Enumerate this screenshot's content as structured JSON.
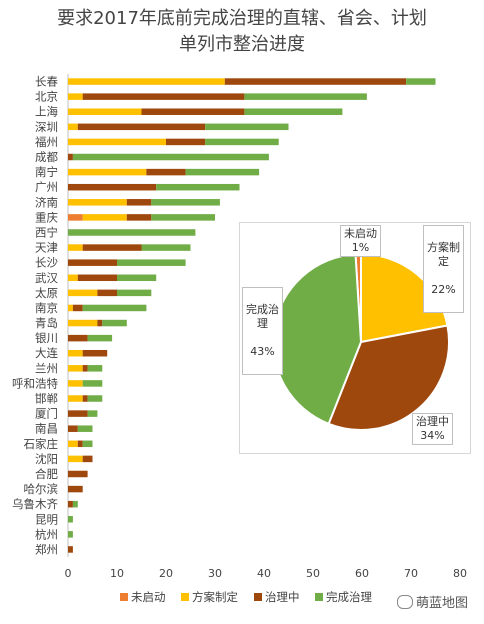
{
  "chart_data": [
    {
      "type": "bar",
      "orientation": "horizontal",
      "stacked": true,
      "title": "要求2017年底前完成治理的直辖、省会、计划单列市整治进度",
      "title_lines": [
        "要求2017年底前完成治理的直辖、省会、计划",
        "单列市整治进度"
      ],
      "categories": [
        "长春",
        "北京",
        "上海",
        "深圳",
        "福州",
        "成都",
        "南宁",
        "广州",
        "济南",
        "重庆",
        "西宁",
        "天津",
        "长沙",
        "武汉",
        "太原",
        "南京",
        "青岛",
        "银川",
        "大连",
        "兰州",
        "呼和浩特",
        "邯郸",
        "厦门",
        "南昌",
        "石家庄",
        "沈阳",
        "合肥",
        "哈尔滨",
        "乌鲁木齐",
        "昆明",
        "杭州",
        "郑州"
      ],
      "series": [
        {
          "name": "未启动",
          "color": "#ED7D31",
          "values": [
            0,
            0,
            0,
            0,
            0,
            0,
            0,
            0,
            0,
            3,
            0,
            0,
            0,
            0,
            0,
            0,
            0,
            0,
            0,
            0,
            0,
            0,
            0,
            0,
            0,
            0,
            0,
            0,
            0,
            0,
            0,
            0
          ]
        },
        {
          "name": "方案制定",
          "color": "#FFC000",
          "values": [
            32,
            3,
            15,
            2,
            20,
            0,
            16,
            0,
            12,
            9,
            0,
            3,
            0,
            2,
            6,
            1,
            6,
            0,
            3,
            3,
            3,
            3,
            0,
            0,
            2,
            3,
            0,
            0,
            0,
            0,
            0,
            0
          ]
        },
        {
          "name": "治理中",
          "color": "#9E480E",
          "values": [
            37,
            33,
            21,
            26,
            8,
            1,
            8,
            18,
            5,
            5,
            0,
            12,
            10,
            8,
            4,
            2,
            1,
            4,
            5,
            1,
            0,
            1,
            4,
            2,
            1,
            2,
            4,
            3,
            1,
            0,
            0,
            1
          ]
        },
        {
          "name": "完成治理",
          "color": "#70AD47",
          "values": [
            6,
            25,
            20,
            17,
            15,
            40,
            15,
            17,
            14,
            13,
            26,
            10,
            14,
            8,
            7,
            13,
            5,
            5,
            0,
            3,
            4,
            3,
            2,
            3,
            2,
            0,
            0,
            0,
            1,
            1,
            1,
            0
          ]
        }
      ],
      "xlim": [
        0,
        80
      ],
      "xticks": [
        0,
        10,
        20,
        30,
        40,
        50,
        60,
        70,
        80
      ],
      "grid": false,
      "legend_position": "bottom"
    },
    {
      "type": "pie",
      "slices": [
        {
          "label": "未启动",
          "label_display": "未启动",
          "percent_text": "1%",
          "value": 1,
          "color": "#ED7D31"
        },
        {
          "label": "方案制定",
          "label_display": "方案制\n定",
          "percent_text": "22%",
          "value": 22,
          "color": "#FFC000"
        },
        {
          "label": "治理中",
          "label_display": "治理中",
          "percent_text": "34%",
          "value": 34,
          "color": "#9E480E"
        },
        {
          "label": "完成治理",
          "label_display": "完成治\n理",
          "percent_text": "43%",
          "value": 43,
          "color": "#70AD47"
        }
      ]
    }
  ],
  "watermark": "萌蓝地图"
}
